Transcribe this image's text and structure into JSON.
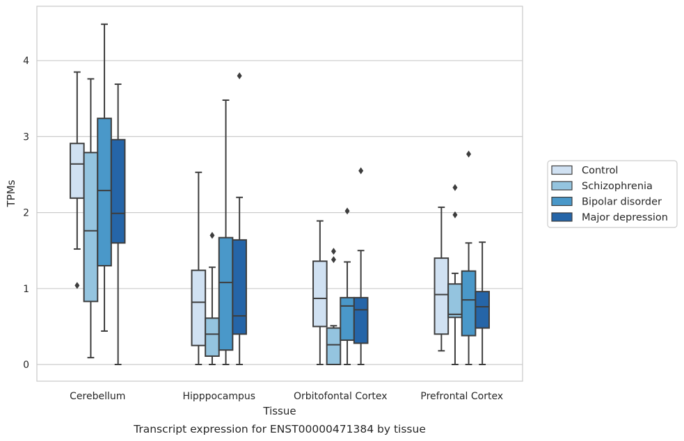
{
  "caption": "Transcript expression for ENST00000471384 by tissue",
  "chart_data": {
    "type": "box",
    "xlabel": "Tissue",
    "ylabel": "TPMs",
    "ylim": [
      -0.22,
      4.7
    ],
    "yticks": [
      0,
      1,
      2,
      3,
      4
    ],
    "grid": "horizontal",
    "legend_position": "right",
    "categories": [
      "Cerebellum",
      "Hipppocampus",
      "Orbitofontal Cortex",
      "Prefrontal Cortex"
    ],
    "series": [
      {
        "name": "Control",
        "color": "#d0e1f2",
        "boxes": [
          {
            "whisker_low": 1.52,
            "q1": 2.19,
            "median": 2.64,
            "q3": 2.91,
            "whisker_high": 3.85,
            "outliers": [
              1.04
            ]
          },
          {
            "whisker_low": 0.0,
            "q1": 0.25,
            "median": 0.82,
            "q3": 1.24,
            "whisker_high": 2.53,
            "outliers": []
          },
          {
            "whisker_low": 0.0,
            "q1": 0.5,
            "median": 0.87,
            "q3": 1.36,
            "whisker_high": 1.89,
            "outliers": []
          },
          {
            "whisker_low": 0.18,
            "q1": 0.4,
            "median": 0.92,
            "q3": 1.4,
            "whisker_high": 2.07,
            "outliers": []
          }
        ]
      },
      {
        "name": "Schizophrenia",
        "color": "#94c4df",
        "boxes": [
          {
            "whisker_low": 0.09,
            "q1": 0.83,
            "median": 1.76,
            "q3": 2.79,
            "whisker_high": 3.76,
            "outliers": []
          },
          {
            "whisker_low": 0.0,
            "q1": 0.11,
            "median": 0.4,
            "q3": 0.61,
            "whisker_high": 1.28,
            "outliers": [
              1.7
            ]
          },
          {
            "whisker_low": 0.0,
            "q1": 0.0,
            "median": 0.26,
            "q3": 0.48,
            "whisker_high": 0.51,
            "outliers": [
              1.38,
              1.49
            ]
          },
          {
            "whisker_low": 0.0,
            "q1": 0.62,
            "median": 0.66,
            "q3": 1.06,
            "whisker_high": 1.2,
            "outliers": [
              1.97,
              2.33
            ]
          }
        ]
      },
      {
        "name": "Bipolar disorder",
        "color": "#4a98c9",
        "boxes": [
          {
            "whisker_low": 0.44,
            "q1": 1.3,
            "median": 2.29,
            "q3": 3.24,
            "whisker_high": 4.48,
            "outliers": []
          },
          {
            "whisker_low": 0.0,
            "q1": 0.19,
            "median": 1.08,
            "q3": 1.67,
            "whisker_high": 3.48,
            "outliers": []
          },
          {
            "whisker_low": 0.0,
            "q1": 0.32,
            "median": 0.77,
            "q3": 0.88,
            "whisker_high": 1.35,
            "outliers": [
              2.02
            ]
          },
          {
            "whisker_low": 0.0,
            "q1": 0.38,
            "median": 0.85,
            "q3": 1.23,
            "whisker_high": 1.6,
            "outliers": [
              2.77
            ]
          }
        ]
      },
      {
        "name": "Major depression",
        "color": "#2565a8",
        "boxes": [
          {
            "whisker_low": 0.0,
            "q1": 1.6,
            "median": 1.99,
            "q3": 2.96,
            "whisker_high": 3.69,
            "outliers": []
          },
          {
            "whisker_low": 0.0,
            "q1": 0.4,
            "median": 0.64,
            "q3": 1.64,
            "whisker_high": 2.2,
            "outliers": [
              3.8
            ]
          },
          {
            "whisker_low": 0.0,
            "q1": 0.28,
            "median": 0.72,
            "q3": 0.88,
            "whisker_high": 1.5,
            "outliers": [
              2.55
            ]
          },
          {
            "whisker_low": 0.0,
            "q1": 0.48,
            "median": 0.76,
            "q3": 0.96,
            "whisker_high": 1.61,
            "outliers": []
          }
        ]
      }
    ]
  }
}
